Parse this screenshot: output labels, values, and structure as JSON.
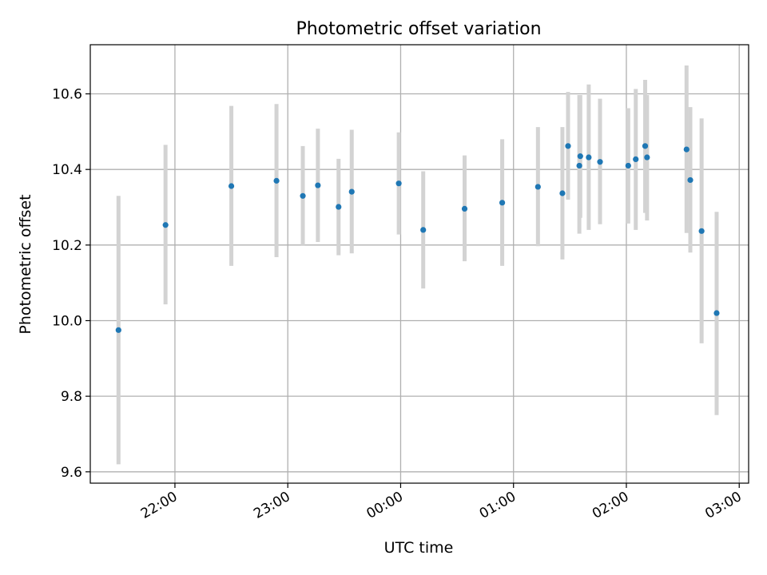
{
  "chart_data": {
    "type": "scatter",
    "title": "Photometric offset variation",
    "xlabel": "UTC time",
    "ylabel": "Photometric offset",
    "x_axis": {
      "kind": "time",
      "range": [
        "21:15",
        "03:05"
      ],
      "ticks": [
        "22:00",
        "23:00",
        "00:00",
        "01:00",
        "02:00",
        "03:00"
      ]
    },
    "y_axis": {
      "range": [
        9.57,
        10.73
      ],
      "ticks": [
        "9.6",
        "9.8",
        "10.0",
        "10.2",
        "10.4",
        "10.6"
      ]
    },
    "grid": true,
    "colors": {
      "point": "#1f77b4",
      "errorbar": "#d3d3d3",
      "grid": "#b0b0b0"
    },
    "series": [
      {
        "points": [
          {
            "x": "21:30",
            "y": 9.975,
            "low": 9.62,
            "high": 10.33
          },
          {
            "x": "21:55",
            "y": 10.253,
            "low": 10.043,
            "high": 10.465
          },
          {
            "x": "22:30",
            "y": 10.356,
            "low": 10.145,
            "high": 10.568
          },
          {
            "x": "22:54",
            "y": 10.37,
            "low": 10.168,
            "high": 10.573
          },
          {
            "x": "23:08",
            "y": 10.33,
            "low": 10.2,
            "high": 10.462
          },
          {
            "x": "23:16",
            "y": 10.358,
            "low": 10.208,
            "high": 10.508
          },
          {
            "x": "23:27",
            "y": 10.301,
            "low": 10.173,
            "high": 10.428
          },
          {
            "x": "23:34",
            "y": 10.341,
            "low": 10.178,
            "high": 10.505
          },
          {
            "x": "23:59",
            "y": 10.363,
            "low": 10.228,
            "high": 10.498
          },
          {
            "x": "00:12",
            "y": 10.24,
            "low": 10.085,
            "high": 10.395
          },
          {
            "x": "00:34",
            "y": 10.296,
            "low": 10.157,
            "high": 10.437
          },
          {
            "x": "00:54",
            "y": 10.312,
            "low": 10.145,
            "high": 10.48
          },
          {
            "x": "01:13",
            "y": 10.354,
            "low": 10.197,
            "high": 10.512
          },
          {
            "x": "01:26",
            "y": 10.337,
            "low": 10.162,
            "high": 10.512
          },
          {
            "x": "01:29",
            "y": 10.462,
            "low": 10.32,
            "high": 10.605
          },
          {
            "x": "01:35",
            "y": 10.41,
            "low": 10.23,
            "high": 10.597
          },
          {
            "x": "01:35.5",
            "y": 10.435,
            "low": 10.272,
            "high": 10.597
          },
          {
            "x": "01:40",
            "y": 10.432,
            "low": 10.24,
            "high": 10.625
          },
          {
            "x": "01:46",
            "y": 10.42,
            "low": 10.255,
            "high": 10.587
          },
          {
            "x": "02:01",
            "y": 10.41,
            "low": 10.257,
            "high": 10.562
          },
          {
            "x": "02:05",
            "y": 10.427,
            "low": 10.24,
            "high": 10.613
          },
          {
            "x": "02:10",
            "y": 10.462,
            "low": 10.285,
            "high": 10.637
          },
          {
            "x": "02:11",
            "y": 10.432,
            "low": 10.265,
            "high": 10.597
          },
          {
            "x": "02:32",
            "y": 10.453,
            "low": 10.232,
            "high": 10.675
          },
          {
            "x": "02:34",
            "y": 10.372,
            "low": 10.18,
            "high": 10.565
          },
          {
            "x": "02:40",
            "y": 10.237,
            "low": 9.94,
            "high": 10.535
          },
          {
            "x": "02:48",
            "y": 10.02,
            "low": 9.75,
            "high": 10.288
          }
        ]
      }
    ]
  }
}
